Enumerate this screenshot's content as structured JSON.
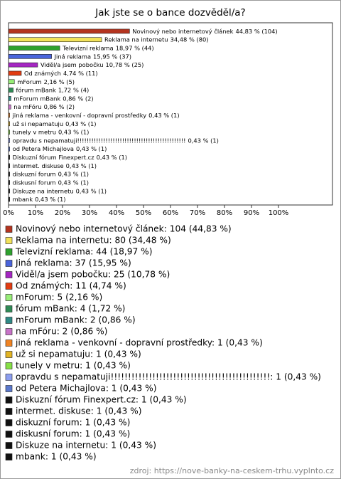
{
  "chart_data": {
    "type": "barh",
    "title": "Jak jste se o bance dozvěděl/a?",
    "categories": [
      "Novinový nebo internetový článek",
      "Reklama na internetu",
      "Televizní reklama",
      "Jiná reklama",
      "Viděl/a jsem pobočku",
      "Od známých",
      "mForum",
      "fórum mBank",
      "mForum mBank",
      "na mFóru",
      "jiná reklama - venkovní - dopravní prostředky",
      "už si nepamatuju",
      "tunely v metru",
      "opravdu s nepamatuji!!!!!!!!!!!!!!!!!!!!!!!!!!!!!!!!!!!!!!!!!!!!!!",
      "od Petera Michajlova",
      "Diskuzní fórum Finexpert.cz",
      "intermet. diskuse",
      "diskuzní forum",
      "diskusní forum",
      "Diskuze na internetu",
      "mbank"
    ],
    "values": [
      44.83,
      34.48,
      18.97,
      15.95,
      10.78,
      4.74,
      2.16,
      1.72,
      0.86,
      0.86,
      0.43,
      0.43,
      0.43,
      0.43,
      0.43,
      0.43,
      0.43,
      0.43,
      0.43,
      0.43,
      0.43
    ],
    "value_labels": [
      "44,83 % (104)",
      "34,48 % (80)",
      "18,97 % (44)",
      "15,95 % (37)",
      "10,78 % (25)",
      "4,74 % (11)",
      "2,16 % (5)",
      "1,72 % (4)",
      "0,86 % (2)",
      "0,86 % (2)",
      "0,43 % (1)",
      "0,43 % (1)",
      "0,43 % (1)",
      "0,43 % (1)",
      "0,43 % (1)",
      "0,43 % (1)",
      "0,43 % (1)",
      "0,43 % (1)",
      "0,43 % (1)",
      "0,43 % (1)",
      "0,43 % (1)"
    ],
    "legend_labels": [
      "Novinový nebo internetový článek: 104 (44,83 %)",
      "Reklama na internetu: 80 (34,48 %)",
      "Televizní reklama: 44 (18,97 %)",
      "Jiná reklama: 37 (15,95 %)",
      "Viděl/a jsem pobočku: 25 (10,78 %)",
      "Od známých: 11 (4,74 %)",
      "mForum: 5 (2,16 %)",
      "fórum mBank: 4 (1,72 %)",
      "mForum mBank: 2 (0,86 %)",
      "na mFóru: 2 (0,86 %)",
      "jiná reklama - venkovní - dopravní prostředky: 1 (0,43 %)",
      "už si nepamatuju: 1 (0,43 %)",
      "tunely v metru: 1 (0,43 %)",
      "opravdu s nepamatuji!!!!!!!!!!!!!!!!!!!!!!!!!!!!!!!!!!!!!!!!!!!!!!: 1 (0,43 %)",
      "od Petera Michajlova: 1 (0,43 %)",
      "Diskuzní fórum Finexpert.cz: 1 (0,43 %)",
      "intermet. diskuse: 1 (0,43 %)",
      "diskuzní forum: 1 (0,43 %)",
      "diskusní forum: 1 (0,43 %)",
      "Diskuze na internetu: 1 (0,43 %)",
      "mbank: 1 (0,43 %)"
    ],
    "colors": [
      "#b5341f",
      "#f2e25a",
      "#2ea12e",
      "#4a64dc",
      "#a526c2",
      "#e23c12",
      "#98ee78",
      "#2f8a55",
      "#2f8a86",
      "#c873c8",
      "#f08424",
      "#e2b424",
      "#86e046",
      "#8c9ef0",
      "#5a78cc",
      "#111111",
      "#111111",
      "#111111",
      "#111111",
      "#111111",
      "#111111"
    ],
    "xlim": [
      0,
      120
    ],
    "xticks": [
      {
        "value": 0,
        "label": "0%"
      },
      {
        "value": 10,
        "label": "10%"
      },
      {
        "value": 20,
        "label": "20%"
      },
      {
        "value": 30,
        "label": "30%"
      },
      {
        "value": 40,
        "label": "40%"
      },
      {
        "value": 50,
        "label": "50%"
      },
      {
        "value": 60,
        "label": "60%"
      },
      {
        "value": 70,
        "label": "70%"
      },
      {
        "value": 80,
        "label": "80%"
      },
      {
        "value": 90,
        "label": "90%"
      },
      {
        "value": 100,
        "label": "100%"
      }
    ],
    "source": "zdroj: https://nove-banky-na-ceskem-trhu.vyplnto.cz"
  }
}
